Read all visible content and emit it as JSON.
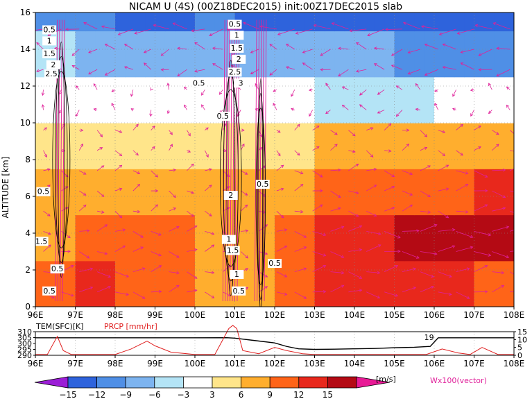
{
  "chart_data": [
    {
      "type": "heatmap",
      "title": "NICAM U (4S) (00Z18DEC2015) init:00Z17DEC2015 slab",
      "ylabel": "ALTITUDE [km]",
      "xlim": [
        96,
        108
      ],
      "ylim": [
        0,
        16
      ],
      "x_tick_labels": [
        "96E",
        "97E",
        "98E",
        "99E",
        "100E",
        "101E",
        "102E",
        "103E",
        "104E",
        "105E",
        "106E",
        "107E",
        "108E"
      ],
      "y_tick_labels": [
        "0",
        "2",
        "4",
        "6",
        "8",
        "10",
        "12",
        "14",
        "16"
      ],
      "grid": true,
      "contour_labels": [
        "0.5",
        "1",
        "1.5",
        "2",
        "2.5",
        "0.5",
        "1",
        "1.5",
        "2",
        "2.5",
        "3",
        "0.5",
        "0.5",
        "0.5",
        "2",
        "1",
        "1.5",
        "1",
        "0.5",
        "0.5",
        "0.5",
        "0.5",
        "0.5",
        "1.5"
      ],
      "u_layers": [
        {
          "z_min": 0,
          "z_max": 2.5,
          "u": [
            9,
            12,
            12,
            9,
            9,
            6,
            9,
            12,
            12,
            12,
            12,
            12,
            9
          ]
        },
        {
          "z_min": 2.5,
          "z_max": 5,
          "u": [
            6,
            9,
            9,
            9,
            9,
            6,
            9,
            12,
            12,
            15,
            15,
            15,
            15
          ]
        },
        {
          "z_min": 5,
          "z_max": 7.5,
          "u": [
            6,
            6,
            6,
            6,
            6,
            6,
            6,
            9,
            9,
            9,
            9,
            12,
            12
          ]
        },
        {
          "z_min": 7.5,
          "z_max": 10,
          "u": [
            3,
            3,
            6,
            3,
            3,
            3,
            3,
            6,
            6,
            6,
            6,
            6,
            6
          ]
        },
        {
          "z_min": 10,
          "z_max": 12.5,
          "u": [
            0,
            -3,
            -3,
            0,
            -3,
            -3,
            -3,
            -3,
            -6,
            -6,
            -3,
            -3,
            -3
          ]
        },
        {
          "z_min": 12.5,
          "z_max": 15,
          "u": [
            -6,
            -6,
            -9,
            -6,
            -9,
            -9,
            -6,
            -9,
            -9,
            -9,
            -12,
            -12,
            -12
          ]
        },
        {
          "z_min": 15,
          "z_max": 16,
          "u": [
            -12,
            -12,
            -12,
            -15,
            -12,
            -12,
            -15,
            -15,
            -15,
            -15,
            -15,
            -15,
            -15
          ]
        }
      ]
    },
    {
      "type": "line",
      "x_tick_labels": [
        "96E",
        "97E",
        "98E",
        "99E",
        "100E",
        "101E",
        "102E",
        "103E",
        "104E",
        "105E",
        "106E",
        "107E",
        "108E"
      ],
      "left_axis_label": "TEM(SFC)[K]",
      "left_ticks": [
        "290",
        "295",
        "300",
        "305",
        "310"
      ],
      "right_axis_label": "PRCP [mm/hr]",
      "right_ticks": [
        "0",
        "5",
        "10",
        "15"
      ],
      "series": [
        {
          "name": "TEM(SFC)",
          "color": "#000000",
          "x": [
            96,
            97,
            98,
            99,
            100,
            100.8,
            101,
            101.5,
            102,
            102.3,
            102.6,
            103,
            103.5,
            104,
            104.5,
            105,
            105.5,
            105.9,
            106.1,
            106.5,
            107,
            107.5,
            108
          ],
          "y": [
            304.8,
            304.8,
            304.8,
            304.8,
            304.8,
            304.9,
            304.5,
            302.5,
            300.5,
            297.5,
            295.5,
            295,
            295.2,
            295.5,
            295.8,
            296.4,
            296.8,
            297.5,
            304.8,
            304.8,
            304.8,
            304.8,
            304.8
          ]
        },
        {
          "name": "PRCP",
          "color": "#e02020",
          "x": [
            96,
            96.3,
            96.55,
            96.7,
            96.9,
            97.5,
            98,
            98.4,
            98.8,
            99,
            99.4,
            100,
            100.5,
            100.85,
            100.95,
            101.05,
            101.2,
            101.6,
            102,
            102.3,
            102.7,
            103,
            104,
            105,
            105.8,
            106.2,
            106.6,
            106.9,
            107.2,
            107.6,
            108
          ],
          "y": [
            0.5,
            0.5,
            12,
            3,
            0.5,
            0.5,
            0.5,
            4,
            9,
            6,
            2,
            0.5,
            0.5,
            17,
            19,
            17,
            3,
            1,
            5,
            3,
            1,
            0.5,
            0.5,
            0.5,
            0.5,
            4,
            1.5,
            0.5,
            5,
            0.5,
            0.5
          ]
        }
      ],
      "annotation": "19"
    }
  ],
  "colorbar": {
    "labels": [
      "-15",
      "-12",
      "-9",
      "-6",
      "-3",
      "3",
      "6",
      "9",
      "12",
      "15"
    ],
    "unit": "[m/s]",
    "colors": [
      "#9b1dd6",
      "#2e63dc",
      "#4f8fe6",
      "#7db4f0",
      "#b4e4f6",
      "#ffffff",
      "#ffe58a",
      "#ffae2e",
      "#ff6418",
      "#e8281c",
      "#b40a14",
      "#e81a96"
    ]
  },
  "vector_label": "Wx100(vector)",
  "vector_color": "#e0209a"
}
